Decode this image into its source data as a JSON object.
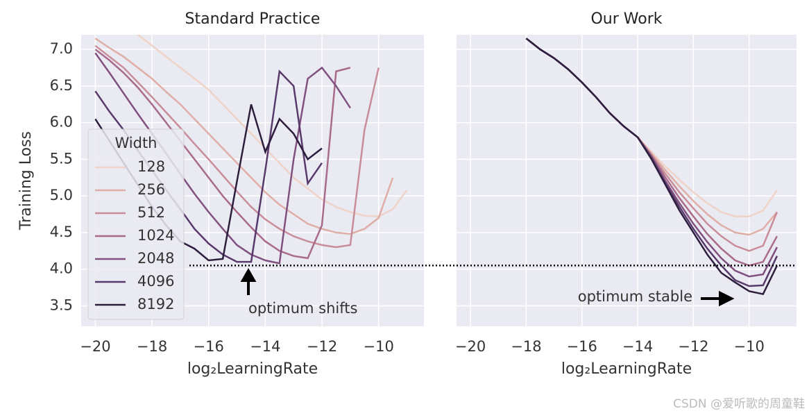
{
  "chart_data": [
    {
      "type": "line",
      "title": "Standard Practice",
      "xlabel": "log₂LearningRate",
      "ylabel": "Training Loss",
      "legend_title": "Width",
      "grid": true,
      "reference_line": 4.05,
      "annotation": "optimum shifts",
      "xlim": [
        -20.5,
        -8.4
      ],
      "ylim": [
        3.22,
        7.2
      ],
      "xticks": [
        {
          "value": -20,
          "label": "−20"
        },
        {
          "value": -18,
          "label": "−18"
        },
        {
          "value": -16,
          "label": "−16"
        },
        {
          "value": -14,
          "label": "−14"
        },
        {
          "value": -12,
          "label": "−12"
        },
        {
          "value": -10,
          "label": "−10"
        }
      ],
      "yticks": [
        {
          "value": 3.5,
          "label": "3.5"
        },
        {
          "value": 4,
          "label": "4.0"
        },
        {
          "value": 4.5,
          "label": "4.5"
        },
        {
          "value": 5,
          "label": "5.0"
        },
        {
          "value": 5.5,
          "label": "5.5"
        },
        {
          "value": 6,
          "label": "6.0"
        },
        {
          "value": 6.5,
          "label": "6.5"
        },
        {
          "value": 7,
          "label": "7.0"
        }
      ],
      "x": [
        -20,
        -19.5,
        -19,
        -18.5,
        -18,
        -17.5,
        -17,
        -16.5,
        -16,
        -15.5,
        -15,
        -14.5,
        -14,
        -13.5,
        -13,
        -12.5,
        -12,
        -11.5,
        -11,
        -10.5,
        -10,
        -9.5,
        -9
      ],
      "series": [
        {
          "name": "128",
          "color": "#efd3c8",
          "values": [
            null,
            null,
            null,
            7.2,
            7.05,
            6.9,
            6.75,
            6.6,
            6.45,
            6.25,
            6.05,
            5.85,
            5.65,
            5.45,
            5.25,
            5.1,
            4.95,
            4.85,
            4.78,
            4.73,
            4.72,
            4.82,
            5.08
          ]
        },
        {
          "name": "256",
          "color": "#dfaea6",
          "values": [
            7.15,
            7.02,
            6.9,
            6.75,
            6.6,
            6.42,
            6.25,
            6.05,
            5.85,
            5.65,
            5.45,
            5.25,
            5.05,
            4.88,
            4.75,
            4.62,
            4.55,
            4.5,
            4.48,
            4.55,
            4.7,
            5.25,
            null
          ]
        },
        {
          "name": "512",
          "color": "#c98c99",
          "values": [
            7.05,
            6.9,
            6.75,
            6.55,
            6.35,
            6.14,
            5.93,
            5.71,
            5.5,
            5.28,
            5.06,
            4.85,
            4.68,
            4.55,
            4.45,
            4.38,
            4.33,
            4.3,
            4.33,
            5.9,
            6.75,
            null,
            null
          ]
        },
        {
          "name": "1024",
          "color": "#a86b8c",
          "values": [
            7.0,
            6.85,
            6.68,
            6.48,
            6.25,
            6.0,
            5.75,
            5.5,
            5.25,
            5.0,
            4.78,
            4.57,
            4.38,
            4.25,
            4.18,
            4.15,
            4.6,
            6.7,
            6.75,
            null,
            null,
            null,
            null
          ]
        },
        {
          "name": "2048",
          "color": "#80507f",
          "values": [
            6.95,
            6.68,
            6.4,
            6.12,
            5.85,
            5.58,
            5.3,
            5.03,
            4.78,
            4.55,
            4.33,
            4.2,
            4.12,
            4.08,
            5.5,
            6.6,
            6.75,
            6.5,
            6.2,
            null,
            null,
            null,
            null
          ]
        },
        {
          "name": "4096",
          "color": "#573a6b",
          "values": [
            6.43,
            6.15,
            5.9,
            5.62,
            5.35,
            5.08,
            4.82,
            4.55,
            4.35,
            4.2,
            4.1,
            4.1,
            5.35,
            6.7,
            6.5,
            5.17,
            5.45,
            null,
            null,
            null,
            null,
            null,
            null
          ]
        },
        {
          "name": "8192",
          "color": "#2d1e3e",
          "values": [
            6.05,
            5.75,
            5.45,
            5.15,
            4.85,
            4.6,
            4.38,
            4.28,
            4.12,
            4.14,
            5.2,
            6.25,
            5.6,
            6.05,
            5.85,
            5.5,
            5.65,
            null,
            null,
            null,
            null,
            null,
            null
          ]
        }
      ]
    },
    {
      "type": "line",
      "title": "Our Work",
      "xlabel": "log₂LearningRate",
      "grid": true,
      "annotation": "optimum stable",
      "xlim": [
        -20.5,
        -8.3
      ],
      "ylim": [
        3.22,
        7.2
      ],
      "xticks": [
        {
          "value": -20,
          "label": "−20"
        },
        {
          "value": -18,
          "label": "−18"
        },
        {
          "value": -16,
          "label": "−16"
        },
        {
          "value": -14,
          "label": "−14"
        },
        {
          "value": -12,
          "label": "−12"
        },
        {
          "value": -10,
          "label": "−10"
        }
      ],
      "yticks": [
        3.5,
        4,
        4.5,
        5,
        5.5,
        6,
        6.5,
        7
      ],
      "x": [
        -18,
        -17.5,
        -17,
        -16.5,
        -16,
        -15.5,
        -15,
        -14.5,
        -14,
        -13.5,
        -13,
        -12.5,
        -12,
        -11.5,
        -11,
        -10.5,
        -10,
        -9.5,
        -9
      ],
      "series": [
        {
          "color": "#efd3c8",
          "values": [
            7.15,
            7.0,
            6.88,
            6.73,
            6.55,
            6.35,
            6.13,
            5.95,
            5.8,
            5.6,
            5.4,
            5.22,
            5.05,
            4.9,
            4.78,
            4.72,
            4.72,
            4.8,
            5.08
          ]
        },
        {
          "color": "#dfaea6",
          "values": [
            7.15,
            7.0,
            6.88,
            6.73,
            6.55,
            6.35,
            6.13,
            5.95,
            5.8,
            5.58,
            5.35,
            5.13,
            4.93,
            4.75,
            4.6,
            4.5,
            4.47,
            4.55,
            4.78
          ]
        },
        {
          "color": "#c98c99",
          "values": [
            7.15,
            7.0,
            6.88,
            6.73,
            6.55,
            6.35,
            6.13,
            5.95,
            5.8,
            5.56,
            5.3,
            5.05,
            4.83,
            4.62,
            4.45,
            4.32,
            4.25,
            4.32,
            4.78
          ]
        },
        {
          "color": "#a86b8c",
          "values": [
            7.15,
            7.0,
            6.88,
            6.73,
            6.55,
            6.35,
            6.13,
            5.95,
            5.8,
            5.55,
            5.25,
            4.97,
            4.72,
            4.48,
            4.28,
            4.12,
            4.05,
            4.1,
            4.45
          ]
        },
        {
          "color": "#80507f",
          "values": [
            7.15,
            7.0,
            6.88,
            6.73,
            6.55,
            6.35,
            6.13,
            5.95,
            5.8,
            5.53,
            5.2,
            4.9,
            4.62,
            4.37,
            4.15,
            3.98,
            3.9,
            3.93,
            4.3
          ]
        },
        {
          "color": "#573a6b",
          "values": [
            7.15,
            7.0,
            6.88,
            6.73,
            6.55,
            6.35,
            6.13,
            5.95,
            5.8,
            5.52,
            5.17,
            4.85,
            4.55,
            4.28,
            4.05,
            3.85,
            3.77,
            3.78,
            4.18
          ]
        },
        {
          "color": "#2d1e3e",
          "values": [
            7.15,
            7.0,
            6.88,
            6.73,
            6.55,
            6.35,
            6.13,
            5.95,
            5.8,
            5.5,
            5.15,
            4.8,
            4.5,
            4.2,
            3.95,
            3.82,
            3.7,
            3.66,
            4.05
          ]
        }
      ]
    }
  ],
  "watermark": "CSDN @爱听歌的周童鞋"
}
